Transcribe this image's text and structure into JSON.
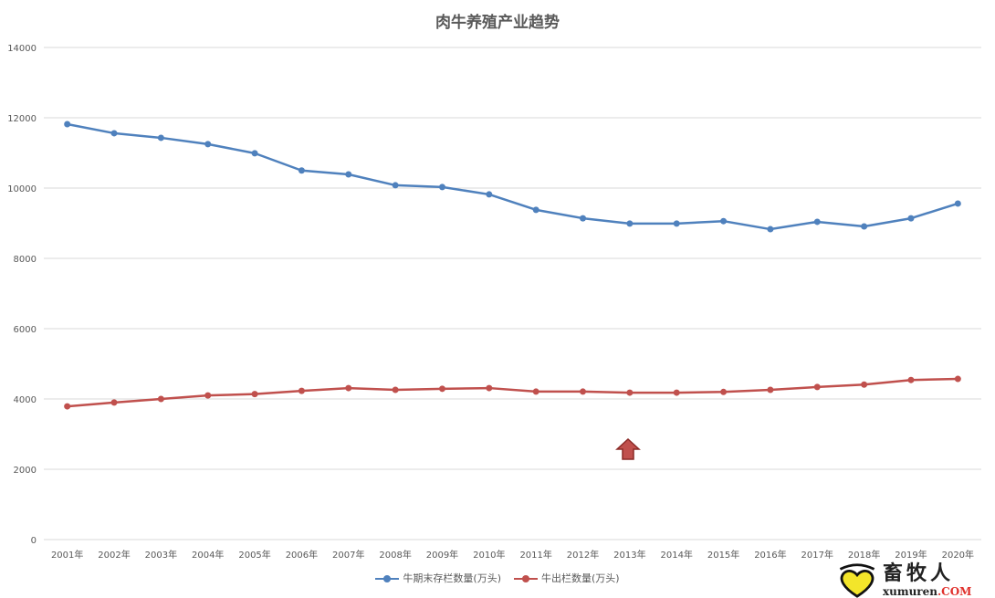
{
  "chart_data": {
    "type": "line",
    "title": "肉牛养殖产业趋势",
    "xlabel": "",
    "ylabel": "",
    "ylim": [
      0,
      14000
    ],
    "yticks": [
      0,
      2000,
      4000,
      6000,
      8000,
      10000,
      12000,
      14000
    ],
    "grid": true,
    "legend_position": "bottom",
    "categories": [
      "2001年",
      "2002年",
      "2003年",
      "2004年",
      "2005年",
      "2006年",
      "2007年",
      "2008年",
      "2009年",
      "2010年",
      "2011年",
      "2012年",
      "2013年",
      "2014年",
      "2015年",
      "2016年",
      "2017年",
      "2018年",
      "2019年",
      "2020年"
    ],
    "series": [
      {
        "name": "牛期末存栏数量(万头)",
        "color": "#4f81bd",
        "values": [
          11818,
          11560,
          11430,
          11250,
          10990,
          10500,
          10390,
          10080,
          10030,
          9820,
          9380,
          9140,
          8990,
          8990,
          9060,
          8830,
          9040,
          8910,
          9140,
          9560
        ]
      },
      {
        "name": "牛出栏数量(万头)",
        "color": "#c0504d",
        "values": [
          3790,
          3900,
          4000,
          4100,
          4140,
          4230,
          4310,
          4260,
          4290,
          4310,
          4210,
          4210,
          4180,
          4180,
          4200,
          4260,
          4340,
          4410,
          4540,
          4570
        ]
      }
    ]
  },
  "logo": {
    "cn": "畜牧人",
    "en": "xumuren",
    "domain": ".COM"
  },
  "arrow_color": "#c0504d"
}
